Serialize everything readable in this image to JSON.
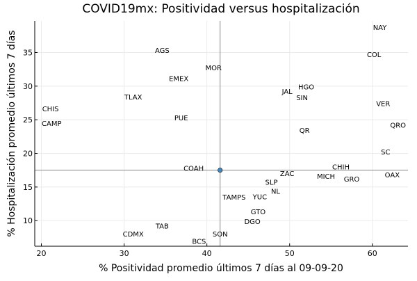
{
  "chart_data": {
    "type": "scatter",
    "title": "COVID19mx: Positividad versus hospitalización",
    "xlabel": "% Positividad promedio últimos 7 días al 09-09-20",
    "ylabel": "% Hospitalización promedio últimos 7 días",
    "xlim": [
      19.2,
      64.3
    ],
    "ylim": [
      6.2,
      39.7
    ],
    "xticks": [
      20,
      30,
      40,
      50,
      60
    ],
    "yticks": [
      10,
      15,
      20,
      25,
      30,
      35
    ],
    "grid": true,
    "legend": "none",
    "mean_point": {
      "x": 41.6,
      "y": 17.5
    },
    "point_color": "#3f89c6",
    "points": [
      {
        "label": "NAY",
        "x": 60.9,
        "y": 38.7
      },
      {
        "label": "COL",
        "x": 60.2,
        "y": 34.7
      },
      {
        "label": "AGS",
        "x": 34.6,
        "y": 35.3
      },
      {
        "label": "MOR",
        "x": 40.8,
        "y": 32.7
      },
      {
        "label": "EMEX",
        "x": 36.6,
        "y": 31.1
      },
      {
        "label": "HGO",
        "x": 52.0,
        "y": 29.9
      },
      {
        "label": "JAL",
        "x": 49.7,
        "y": 29.2
      },
      {
        "label": "SIN",
        "x": 51.5,
        "y": 28.3
      },
      {
        "label": "TLAX",
        "x": 31.1,
        "y": 28.4
      },
      {
        "label": "VER",
        "x": 61.3,
        "y": 27.4
      },
      {
        "label": "CHIS",
        "x": 21.1,
        "y": 26.6
      },
      {
        "label": "CAMP",
        "x": 20.4,
        "y": 25.5
      },
      {
        "label": "PUE",
        "x": 36.9,
        "y": 25.3
      },
      {
        "label": "QRO",
        "x": 63.1,
        "y": 24.2
      },
      {
        "label": "QR",
        "x": 51.8,
        "y": 23.4
      },
      {
        "label": "SC",
        "x": 61.6,
        "y": 20.2
      },
      {
        "label": "COAH",
        "x": 38.4,
        "y": 17.8
      },
      {
        "label": "CHIH",
        "x": 56.2,
        "y": 18.0
      },
      {
        "label": "GRO",
        "x": 57.5,
        "y": 17.2
      },
      {
        "label": "ZAC",
        "x": 49.7,
        "y": 17.0
      },
      {
        "label": "MICH",
        "x": 55.4,
        "y": 16.6
      },
      {
        "label": "OAX",
        "x": 62.4,
        "y": 16.8
      },
      {
        "label": "SLP",
        "x": 47.8,
        "y": 15.7
      },
      {
        "label": "NL",
        "x": 48.3,
        "y": 15.4
      },
      {
        "label": "YUC",
        "x": 46.4,
        "y": 14.6
      },
      {
        "label": "TAMPS",
        "x": 44.3,
        "y": 13.5
      },
      {
        "label": "GTO",
        "x": 46.2,
        "y": 11.3
      },
      {
        "label": "DGO",
        "x": 45.5,
        "y": 10.9
      },
      {
        "label": "TAB",
        "x": 34.6,
        "y": 9.2
      },
      {
        "label": "CDMX",
        "x": 31.1,
        "y": 8.0
      },
      {
        "label": "SON",
        "x": 41.6,
        "y": 8.0
      },
      {
        "label": "BCS",
        "x": 40.9,
        "y": 6.9
      }
    ]
  }
}
